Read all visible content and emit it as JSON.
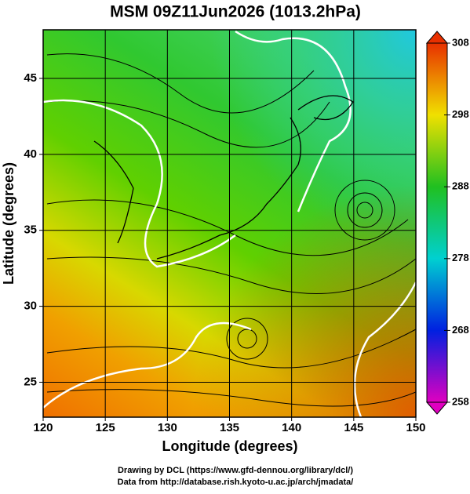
{
  "chart_data": {
    "type": "map",
    "title": "MSM 09Z11Jun2026 (1013.2hPa)",
    "x_label": "Longitude (degrees)",
    "y_label": "Latitude  (degrees)",
    "xlim": [
      120,
      150
    ],
    "xticks": [
      120,
      125,
      130,
      135,
      140,
      145,
      150
    ],
    "ylim": [
      22.7,
      48.2
    ],
    "yticks": [
      25,
      30,
      35,
      40,
      45
    ],
    "grid": true,
    "colorbar": {
      "lim": [
        258,
        308
      ],
      "ticks": [
        258,
        268,
        278,
        288,
        298,
        308
      ]
    },
    "footer": [
      "Drawing by DCL (https://www.gfd-dennou.org/library/dcl/)",
      "Data from http://database.rish.kyoto-u.ac.jp/arch/jmadata/"
    ]
  }
}
